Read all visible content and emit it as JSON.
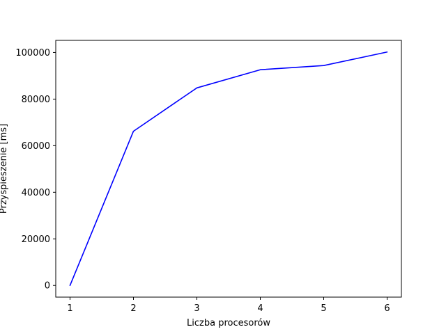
{
  "chart_data": {
    "type": "line",
    "title": "",
    "xlabel": "Liczba procesorów",
    "ylabel": "Przyspieszenie [ms]",
    "x": [
      1,
      2,
      3,
      4,
      5,
      6
    ],
    "series": [
      {
        "values": [
          0,
          66200,
          84800,
          92600,
          94400,
          100200
        ],
        "color": "#0000ff"
      }
    ],
    "xlim": [
      0.775,
      6.225
    ],
    "ylim": [
      -5010,
      105210
    ],
    "xticks": [
      1,
      2,
      3,
      4,
      5,
      6
    ],
    "xtick_labels": [
      "1",
      "2",
      "3",
      "4",
      "5",
      "6"
    ],
    "yticks": [
      0,
      20000,
      40000,
      60000,
      80000,
      100000
    ],
    "ytick_labels": [
      "0",
      "20000",
      "40000",
      "60000",
      "80000",
      "100000"
    ],
    "grid": false,
    "legend": "none"
  }
}
